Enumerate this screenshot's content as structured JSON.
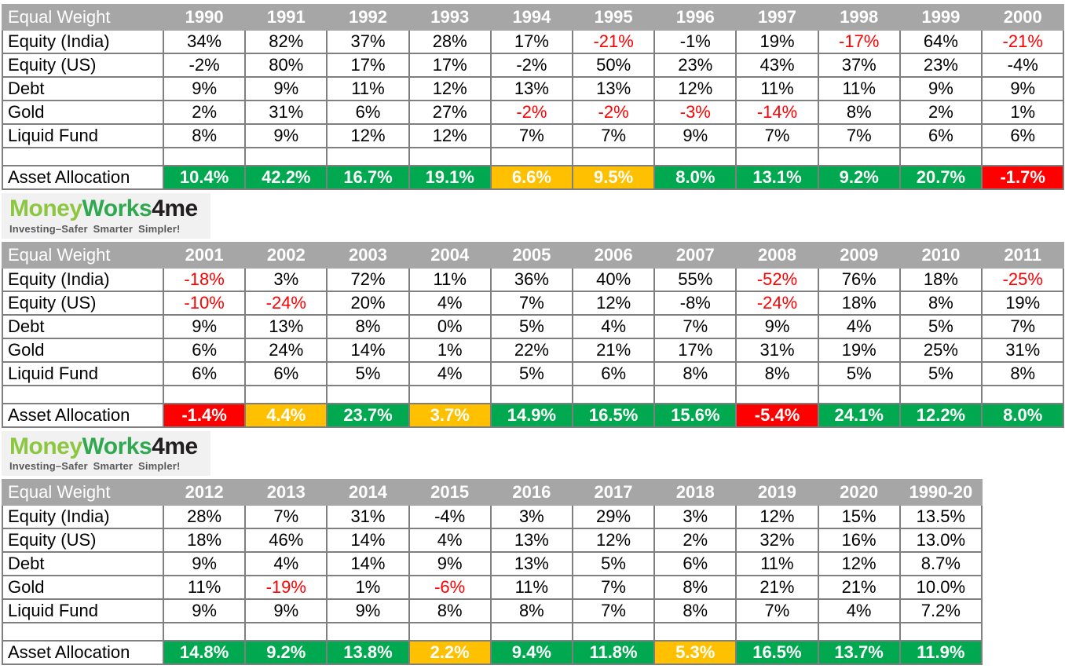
{
  "colors": {
    "positive_green": "#00A84F",
    "warning_orange": "#FFC000",
    "negative_red": "#FF0000",
    "negative_text_red": "#FF0000",
    "header_gray": "#A6A6A6",
    "logo_money_green": "#8DC63F",
    "logo_works_green": "#2FA84F",
    "logo_dark": "#231F20",
    "tagline_gray": "#58595B"
  },
  "logo": {
    "money": "Money",
    "works": "Works",
    "four_me": "4me",
    "tagline": "Investing–Safer Smarter Simpler!"
  },
  "chart_data": [
    {
      "type": "table",
      "title": "Equal Weight returns 1990-2000",
      "header_label": "Equal Weight",
      "columns": [
        "1990",
        "1991",
        "1992",
        "1993",
        "1994",
        "1995",
        "1996",
        "1997",
        "1998",
        "1999",
        "2000"
      ],
      "rows": [
        {
          "label": "Equity (India)",
          "values": [
            "34%",
            "82%",
            "37%",
            "28%",
            "17%",
            "-21%",
            "-1%",
            "19%",
            "-17%",
            "64%",
            "-21%"
          ],
          "red_indices": [
            5,
            8,
            10
          ]
        },
        {
          "label": "Equity (US)",
          "values": [
            "-2%",
            "80%",
            "17%",
            "17%",
            "-2%",
            "50%",
            "23%",
            "43%",
            "37%",
            "23%",
            "-4%"
          ],
          "red_indices": []
        },
        {
          "label": "Debt",
          "values": [
            "9%",
            "9%",
            "11%",
            "12%",
            "13%",
            "13%",
            "12%",
            "11%",
            "11%",
            "9%",
            "9%"
          ],
          "red_indices": []
        },
        {
          "label": "Gold",
          "values": [
            "2%",
            "31%",
            "6%",
            "27%",
            "-2%",
            "-2%",
            "-3%",
            "-14%",
            "8%",
            "2%",
            "1%"
          ],
          "red_indices": [
            4,
            5,
            6,
            7
          ]
        },
        {
          "label": "Liquid Fund",
          "values": [
            "8%",
            "9%",
            "12%",
            "12%",
            "7%",
            "7%",
            "9%",
            "7%",
            "7%",
            "6%",
            "6%"
          ],
          "red_indices": []
        }
      ],
      "allocation": {
        "label": "Asset Allocation",
        "values": [
          "10.4%",
          "42.2%",
          "16.7%",
          "19.1%",
          "6.6%",
          "9.5%",
          "8.0%",
          "13.1%",
          "9.2%",
          "20.7%",
          "-1.7%"
        ],
        "status": [
          "green",
          "green",
          "green",
          "green",
          "orange",
          "orange",
          "green",
          "green",
          "green",
          "green",
          "red"
        ]
      }
    },
    {
      "type": "table",
      "title": "Equal Weight returns 2001-2011",
      "header_label": "Equal Weight",
      "columns": [
        "2001",
        "2002",
        "2003",
        "2004",
        "2005",
        "2006",
        "2007",
        "2008",
        "2009",
        "2010",
        "2011"
      ],
      "rows": [
        {
          "label": "Equity (India)",
          "values": [
            "-18%",
            "3%",
            "72%",
            "11%",
            "36%",
            "40%",
            "55%",
            "-52%",
            "76%",
            "18%",
            "-25%"
          ],
          "red_indices": [
            0,
            7,
            10
          ]
        },
        {
          "label": "Equity (US)",
          "values": [
            "-10%",
            "-24%",
            "20%",
            "4%",
            "7%",
            "12%",
            "-8%",
            "-24%",
            "18%",
            "8%",
            "19%"
          ],
          "red_indices": [
            0,
            1,
            7
          ]
        },
        {
          "label": "Debt",
          "values": [
            "9%",
            "13%",
            "8%",
            "0%",
            "5%",
            "4%",
            "7%",
            "9%",
            "4%",
            "5%",
            "7%"
          ],
          "red_indices": []
        },
        {
          "label": "Gold",
          "values": [
            "6%",
            "24%",
            "14%",
            "1%",
            "22%",
            "21%",
            "17%",
            "31%",
            "19%",
            "25%",
            "31%"
          ],
          "red_indices": []
        },
        {
          "label": "Liquid Fund",
          "values": [
            "6%",
            "6%",
            "5%",
            "4%",
            "5%",
            "6%",
            "8%",
            "8%",
            "5%",
            "5%",
            "8%"
          ],
          "red_indices": []
        }
      ],
      "allocation": {
        "label": "Asset Allocation",
        "values": [
          "-1.4%",
          "4.4%",
          "23.7%",
          "3.7%",
          "14.9%",
          "16.5%",
          "15.6%",
          "-5.4%",
          "24.1%",
          "12.2%",
          "8.0%"
        ],
        "status": [
          "red",
          "orange",
          "green",
          "orange",
          "green",
          "green",
          "green",
          "red",
          "green",
          "green",
          "green"
        ]
      }
    },
    {
      "type": "table",
      "title": "Equal Weight returns 2012-2020 and 1990-20 average",
      "header_label": "Equal Weight",
      "columns": [
        "2012",
        "2013",
        "2014",
        "2015",
        "2016",
        "2017",
        "2018",
        "2019",
        "2020",
        "1990-20"
      ],
      "rows": [
        {
          "label": "Equity (India)",
          "values": [
            "28%",
            "7%",
            "31%",
            "-4%",
            "3%",
            "29%",
            "3%",
            "12%",
            "15%",
            "13.5%"
          ],
          "red_indices": []
        },
        {
          "label": "Equity (US)",
          "values": [
            "18%",
            "46%",
            "14%",
            "4%",
            "13%",
            "12%",
            "2%",
            "32%",
            "16%",
            "13.0%"
          ],
          "red_indices": []
        },
        {
          "label": "Debt",
          "values": [
            "9%",
            "4%",
            "14%",
            "9%",
            "13%",
            "5%",
            "6%",
            "11%",
            "12%",
            "8.7%"
          ],
          "red_indices": []
        },
        {
          "label": "Gold",
          "values": [
            "11%",
            "-19%",
            "1%",
            "-6%",
            "11%",
            "7%",
            "8%",
            "21%",
            "21%",
            "10.0%"
          ],
          "red_indices": [
            1,
            3
          ]
        },
        {
          "label": "Liquid Fund",
          "values": [
            "9%",
            "9%",
            "9%",
            "8%",
            "8%",
            "7%",
            "8%",
            "7%",
            "4%",
            "7.2%"
          ],
          "red_indices": []
        }
      ],
      "allocation": {
        "label": "Asset Allocation",
        "values": [
          "14.8%",
          "9.2%",
          "13.8%",
          "2.2%",
          "9.4%",
          "11.8%",
          "5.3%",
          "16.5%",
          "13.7%",
          "11.9%"
        ],
        "status": [
          "green",
          "green",
          "green",
          "orange",
          "green",
          "green",
          "orange",
          "green",
          "green",
          "green"
        ]
      }
    }
  ]
}
